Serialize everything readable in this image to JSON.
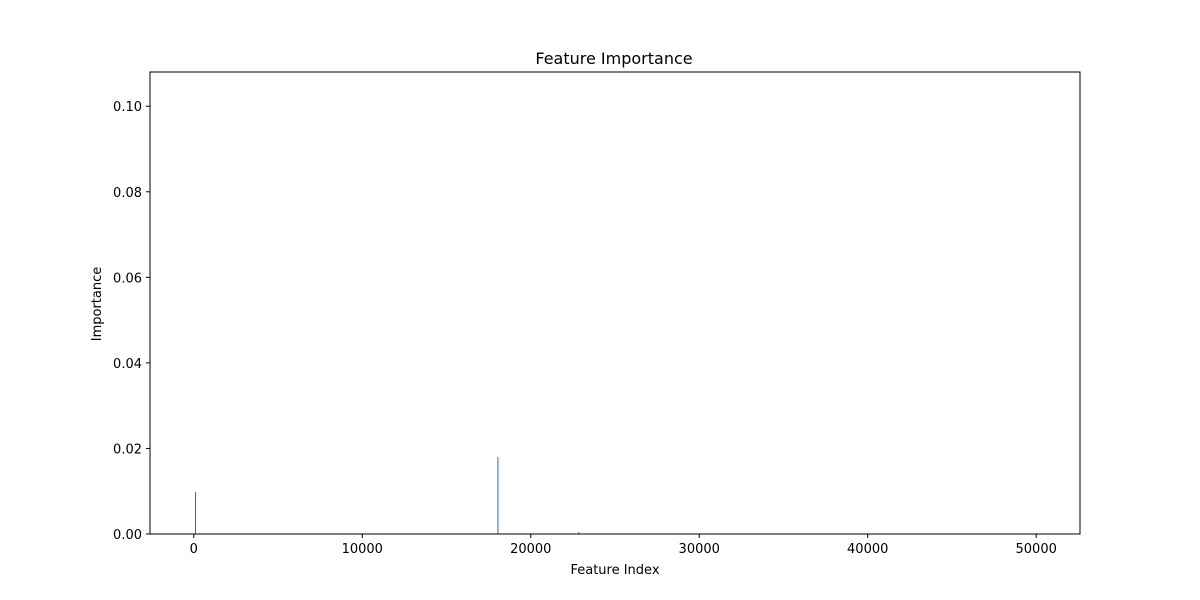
{
  "chart_data": {
    "type": "bar",
    "title": "Feature Importance",
    "xlabel": "Feature Index",
    "ylabel": "Importance",
    "xlim": [
      -2600,
      52600
    ],
    "ylim": [
      0,
      0.108
    ],
    "xticks": [
      0,
      10000,
      20000,
      30000,
      40000,
      50000
    ],
    "xtick_labels": [
      "0",
      "10000",
      "20000",
      "30000",
      "40000",
      "50000"
    ],
    "yticks": [
      0.0,
      0.02,
      0.04,
      0.06,
      0.08,
      0.1
    ],
    "ytick_labels": [
      "0.00",
      "0.02",
      "0.04",
      "0.06",
      "0.08",
      "0.10"
    ],
    "grid": false,
    "bar_color": "#1f77b4",
    "x": [
      100,
      18050,
      22850
    ],
    "values": [
      0.0098,
      0.018,
      0.0005
    ]
  }
}
